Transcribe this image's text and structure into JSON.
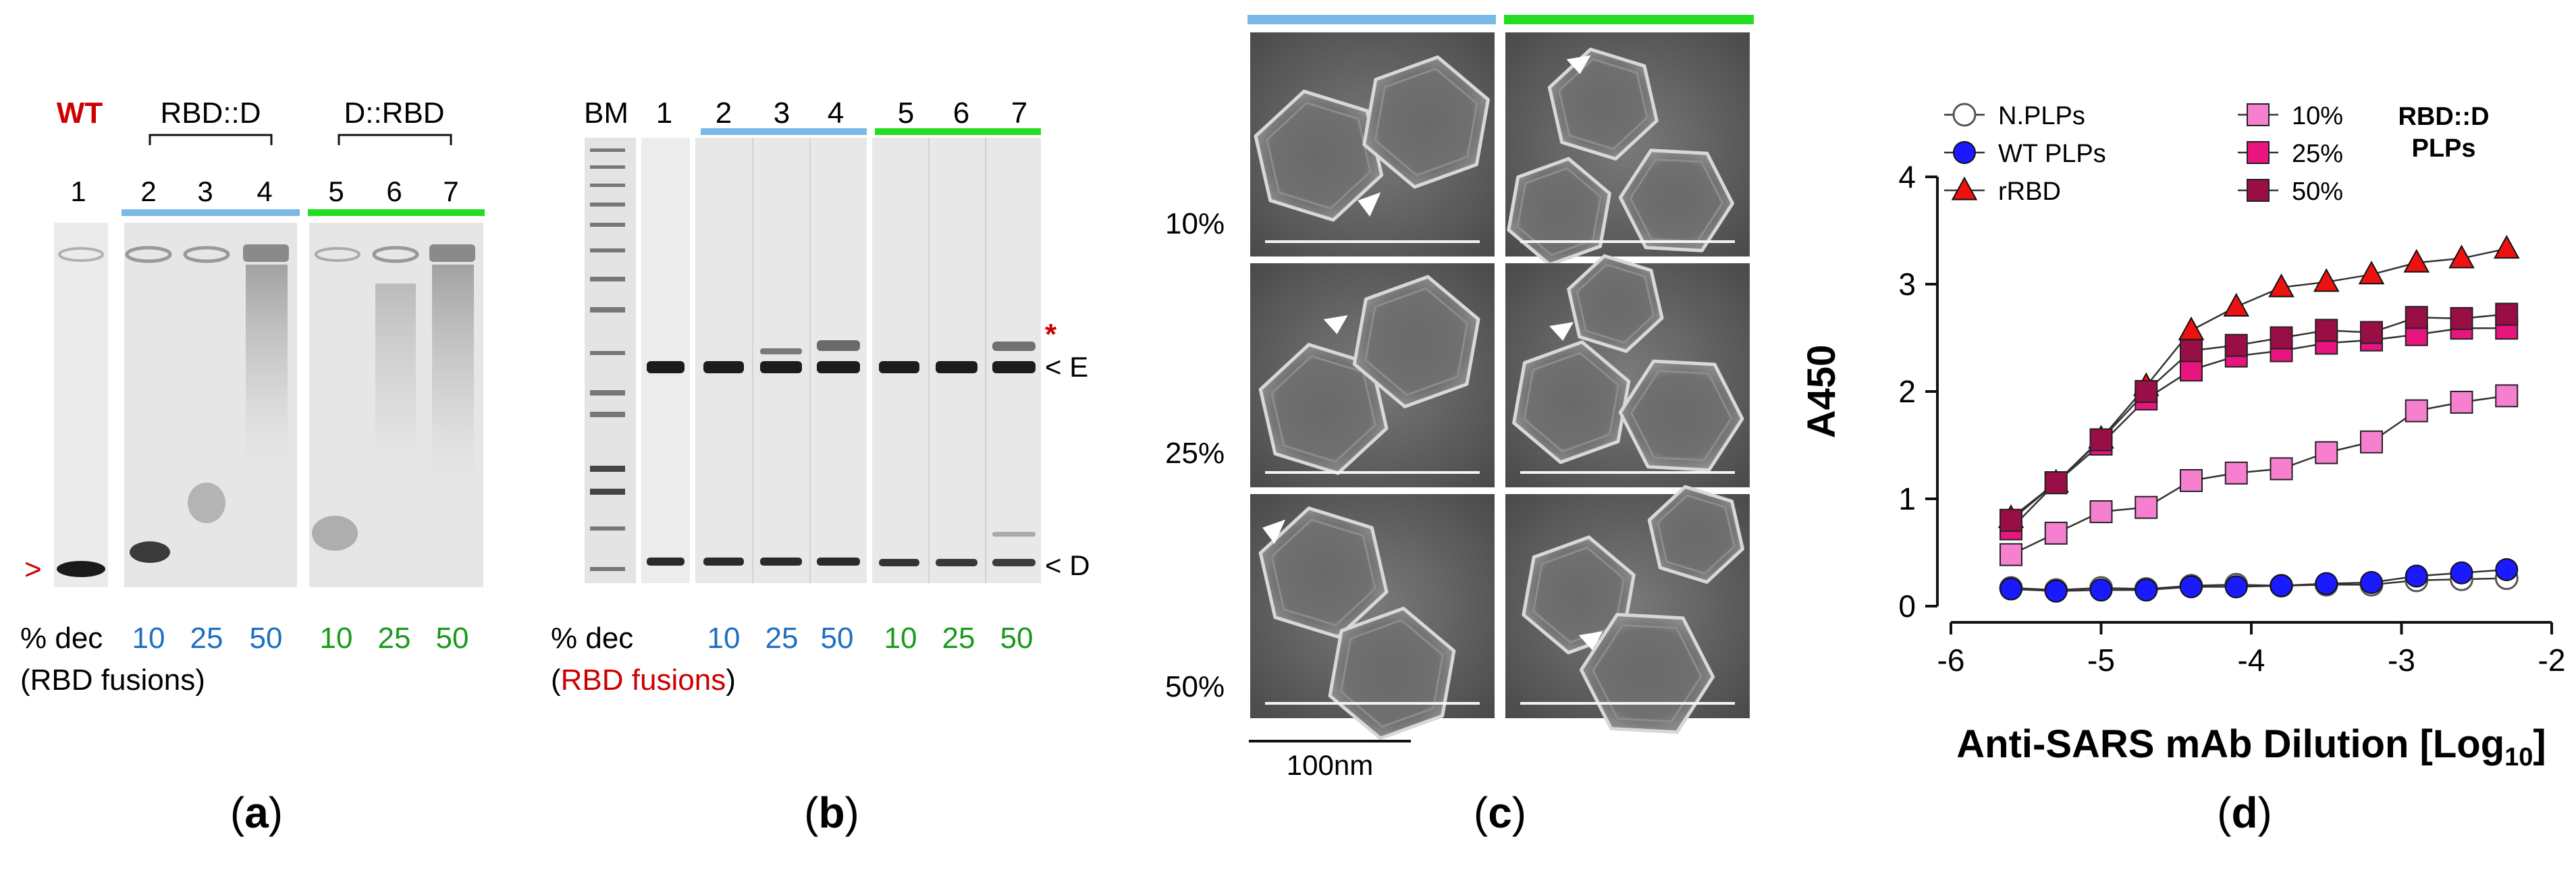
{
  "panel_a": {
    "caption": "(a)",
    "caption_letter": "a",
    "wt_label": "WT",
    "group1_label": "RBD::D",
    "group2_label": "D::RBD",
    "lanes": [
      "1",
      "2",
      "3",
      "4",
      "5",
      "6",
      "7"
    ],
    "left_marker": ">",
    "dec_label": "% dec",
    "dec_sub": "(RBD fusions)",
    "dec_values": [
      "10",
      "25",
      "50",
      "10",
      "25",
      "50"
    ],
    "colors": {
      "blue": "#7ab8e8",
      "green": "#22dd22",
      "red": "#cc0000",
      "blue_text": "#1f6fc0",
      "green_text": "#1a9a1a"
    }
  },
  "panel_b": {
    "caption": "(b)",
    "caption_letter": "b",
    "marker_label": "BM",
    "lanes": [
      "1",
      "2",
      "3",
      "4",
      "5",
      "6",
      "7"
    ],
    "band_e": "< E",
    "band_d": "< D",
    "star": "*",
    "dec_label": "% dec",
    "dec_paren_open": "(",
    "dec_sub_red": "RBD fusions",
    "dec_paren_close": ")",
    "dec_values": [
      "10",
      "25",
      "50",
      "10",
      "25",
      "50"
    ]
  },
  "panel_c": {
    "caption": "(c)",
    "caption_letter": "c",
    "row_labels": [
      "10%",
      "25%",
      "50%"
    ],
    "scale_label": "100nm"
  },
  "panel_d": {
    "caption": "(d)",
    "caption_letter": "d",
    "legend_title_line1": "RBD::D",
    "legend_title_line2": "PLPs",
    "chart_data": {
      "type": "line",
      "xlabel_main": "Anti-SARS mAb Dilution [Log",
      "xlabel_sub": "10",
      "xlabel_end": "]",
      "ylabel": "A450",
      "xlim": [
        -6,
        -2
      ],
      "ylim": [
        0,
        4
      ],
      "xticks": [
        "-6",
        "-5",
        "-4",
        "-3",
        "-2"
      ],
      "yticks": [
        "0",
        "1",
        "2",
        "3",
        "4"
      ],
      "x": [
        -5.6,
        -5.3,
        -5.0,
        -4.7,
        -4.4,
        -4.1,
        -3.8,
        -3.5,
        -3.2,
        -2.9,
        -2.6,
        -2.3
      ],
      "series": [
        {
          "name": "N.PLPs",
          "marker": "circle-open",
          "color": "#555555",
          "values": [
            0.17,
            0.15,
            0.17,
            0.16,
            0.19,
            0.2,
            0.19,
            0.2,
            0.2,
            0.24,
            0.25,
            0.26
          ]
        },
        {
          "name": "WT PLPs",
          "marker": "circle",
          "color": "#1a1aff",
          "values": [
            0.16,
            0.14,
            0.15,
            0.15,
            0.18,
            0.18,
            0.19,
            0.21,
            0.22,
            0.28,
            0.31,
            0.34
          ]
        },
        {
          "name": "rRBD",
          "marker": "triangle",
          "color": "#ee1111",
          "values": [
            0.82,
            1.15,
            1.56,
            2.05,
            2.57,
            2.79,
            2.97,
            3.02,
            3.09,
            3.2,
            3.24,
            3.33
          ]
        },
        {
          "name": "10%",
          "marker": "square",
          "color": "#f77fcf",
          "values": [
            0.48,
            0.68,
            0.88,
            0.92,
            1.17,
            1.24,
            1.28,
            1.43,
            1.53,
            1.82,
            1.9,
            1.96
          ]
        },
        {
          "name": "25%",
          "marker": "square",
          "color": "#e8157f",
          "values": [
            0.72,
            1.15,
            1.51,
            1.93,
            2.2,
            2.33,
            2.38,
            2.45,
            2.48,
            2.53,
            2.59,
            2.59
          ]
        },
        {
          "name": "50%",
          "marker": "square",
          "color": "#990f45",
          "values": [
            0.8,
            1.15,
            1.55,
            2.0,
            2.38,
            2.43,
            2.5,
            2.57,
            2.55,
            2.69,
            2.68,
            2.72
          ]
        }
      ]
    }
  }
}
